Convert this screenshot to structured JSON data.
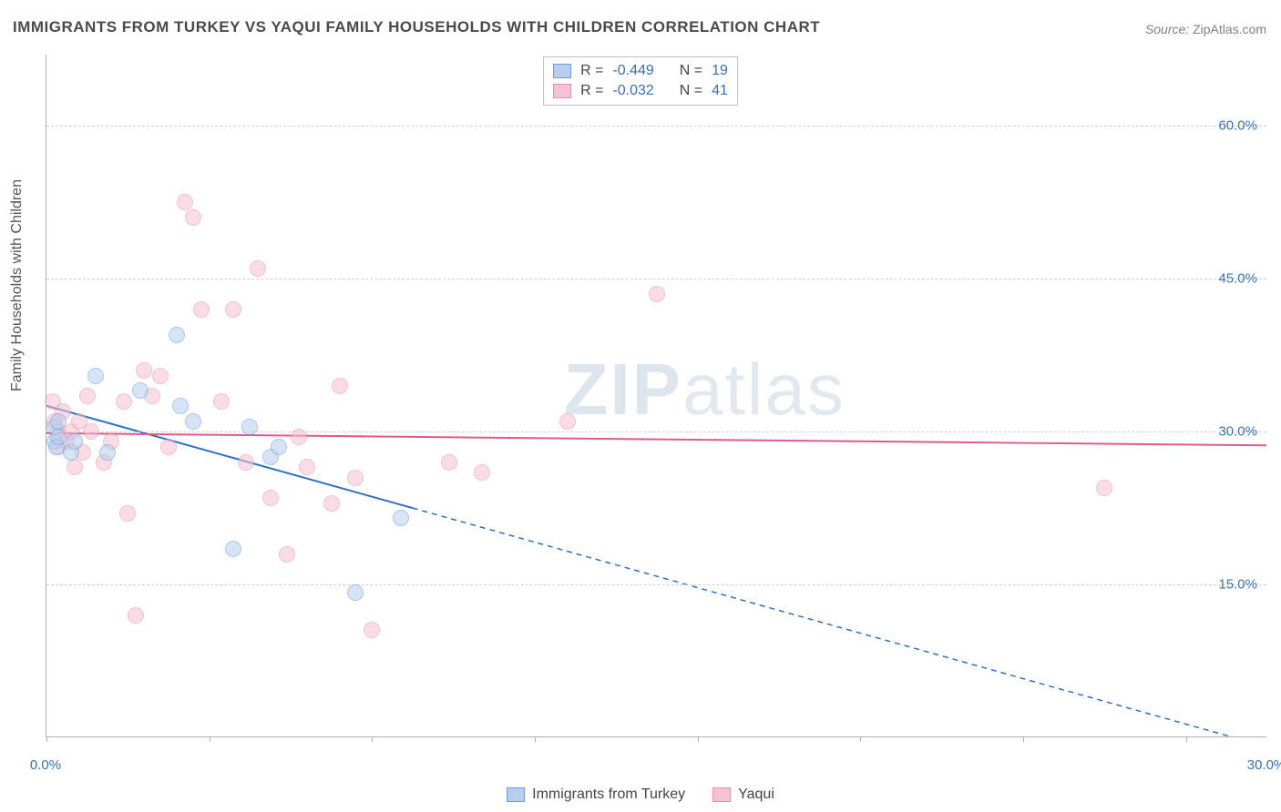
{
  "title": "IMMIGRANTS FROM TURKEY VS YAQUI FAMILY HOUSEHOLDS WITH CHILDREN CORRELATION CHART",
  "source_label": "Source:",
  "source_value": "ZipAtlas.com",
  "watermark_bold": "ZIP",
  "watermark_light": "atlas",
  "chart": {
    "type": "scatter",
    "ylabel": "Family Households with Children",
    "xlim": [
      0,
      30
    ],
    "ylim": [
      0,
      67
    ],
    "xtick_positions": [
      0,
      4,
      8,
      12,
      16,
      20,
      24,
      28
    ],
    "xtick_labels": {
      "0": "0.0%",
      "30": "30.0%"
    },
    "ytick_positions": [
      15,
      30,
      45,
      60
    ],
    "ytick_labels": [
      "15.0%",
      "30.0%",
      "45.0%",
      "60.0%"
    ],
    "grid_color": "#d0d0d0",
    "axis_color": "#b0b0b0",
    "background_color": "#ffffff",
    "label_color": "#3b6fb6",
    "point_radius": 9,
    "series": [
      {
        "name": "Immigrants from Turkey",
        "fill": "#b8cef0",
        "stroke": "#6a9bd8",
        "fill_opacity": 0.55,
        "r": -0.449,
        "n": 19,
        "trend": {
          "x1": 0,
          "y1": 32.5,
          "x2": 30,
          "y2": -1.0,
          "solid_until_x": 9.0,
          "color": "#2f6fc0",
          "width": 2
        },
        "points": [
          [
            0.2,
            29.0
          ],
          [
            0.2,
            30.5
          ],
          [
            0.25,
            28.5
          ],
          [
            0.3,
            31.0
          ],
          [
            0.3,
            29.5
          ],
          [
            0.6,
            28.0
          ],
          [
            0.7,
            29.0
          ],
          [
            1.2,
            35.5
          ],
          [
            1.5,
            28.0
          ],
          [
            2.3,
            34.0
          ],
          [
            3.2,
            39.5
          ],
          [
            3.3,
            32.5
          ],
          [
            3.6,
            31.0
          ],
          [
            4.6,
            18.5
          ],
          [
            5.0,
            30.5
          ],
          [
            5.5,
            27.5
          ],
          [
            5.7,
            28.5
          ],
          [
            7.6,
            14.2
          ],
          [
            8.7,
            21.5
          ]
        ]
      },
      {
        "name": "Yaqui",
        "fill": "#f6c1d1",
        "stroke": "#e78fb0",
        "fill_opacity": 0.55,
        "r": -0.032,
        "n": 41,
        "trend": {
          "x1": 0,
          "y1": 29.8,
          "x2": 30,
          "y2": 28.6,
          "solid_until_x": 30,
          "color": "#e05a8a",
          "width": 2
        },
        "points": [
          [
            0.15,
            33.0
          ],
          [
            0.2,
            31.0
          ],
          [
            0.3,
            30.0
          ],
          [
            0.3,
            28.5
          ],
          [
            0.4,
            32.0
          ],
          [
            0.5,
            29.0
          ],
          [
            0.6,
            30.0
          ],
          [
            0.7,
            26.5
          ],
          [
            0.8,
            31.0
          ],
          [
            0.9,
            28.0
          ],
          [
            1.0,
            33.5
          ],
          [
            1.1,
            30.0
          ],
          [
            1.4,
            27.0
          ],
          [
            1.6,
            29.0
          ],
          [
            1.9,
            33.0
          ],
          [
            2.0,
            22.0
          ],
          [
            2.2,
            12.0
          ],
          [
            2.4,
            36.0
          ],
          [
            2.6,
            33.5
          ],
          [
            2.8,
            35.5
          ],
          [
            3.0,
            28.5
          ],
          [
            3.4,
            52.5
          ],
          [
            3.6,
            51.0
          ],
          [
            3.8,
            42.0
          ],
          [
            4.3,
            33.0
          ],
          [
            4.6,
            42.0
          ],
          [
            4.9,
            27.0
          ],
          [
            5.2,
            46.0
          ],
          [
            5.5,
            23.5
          ],
          [
            5.9,
            18.0
          ],
          [
            6.2,
            29.5
          ],
          [
            6.4,
            26.5
          ],
          [
            7.0,
            23.0
          ],
          [
            7.2,
            34.5
          ],
          [
            7.6,
            25.5
          ],
          [
            8.0,
            10.5
          ],
          [
            9.9,
            27.0
          ],
          [
            10.7,
            26.0
          ],
          [
            12.8,
            31.0
          ],
          [
            15.0,
            43.5
          ],
          [
            26.0,
            24.5
          ]
        ]
      }
    ]
  },
  "legend_top": [
    {
      "swatch_fill": "#b8cef0",
      "swatch_stroke": "#6a9bd8",
      "r_label": "R =",
      "r_value": "-0.449",
      "n_label": "N =",
      "n_value": "19"
    },
    {
      "swatch_fill": "#f6c1d1",
      "swatch_stroke": "#e78fb0",
      "r_label": "R =",
      "r_value": "-0.032",
      "n_label": "N =",
      "n_value": "41"
    }
  ],
  "legend_bottom": [
    {
      "swatch_fill": "#b8cef0",
      "swatch_stroke": "#6a9bd8",
      "label": "Immigrants from Turkey"
    },
    {
      "swatch_fill": "#f6c1d1",
      "swatch_stroke": "#e78fb0",
      "label": "Yaqui"
    }
  ]
}
